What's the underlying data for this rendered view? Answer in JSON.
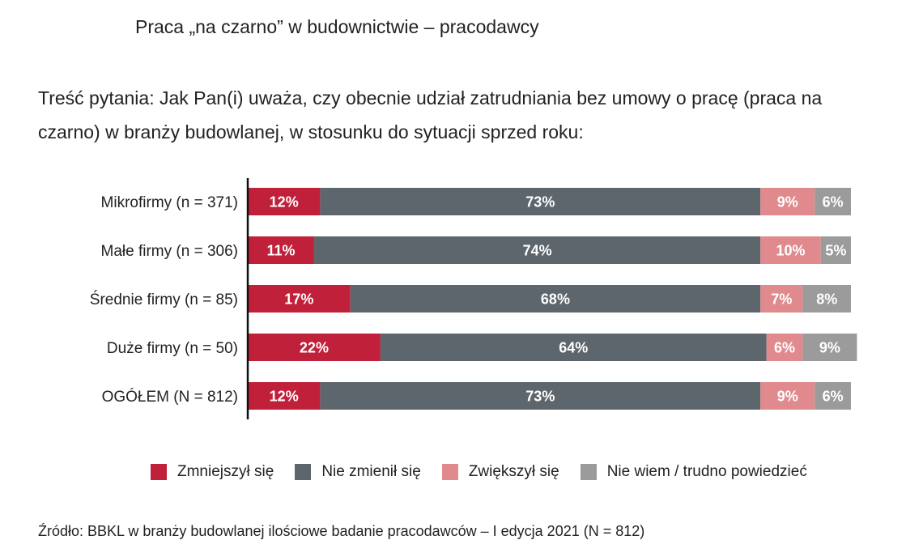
{
  "header": {
    "title": "Praca „na czarno” w budownictwie – pracodawcy",
    "question": "Treść pytania: Jak Pan(i) uważa, czy obecnie udział zatrudniania bez umowy o pracę (praca na czarno) w branży budowlanej, w stosunku do sytuacji sprzed roku:"
  },
  "colors": {
    "decreased": "#c0203a",
    "unchanged": "#5d666d",
    "increased": "#e08a8d",
    "dont_know": "#9b9b9b"
  },
  "chart_data": {
    "type": "bar",
    "orientation": "horizontal",
    "stacked": true,
    "percent": true,
    "categories": [
      "Mikrofirmy (n = 371)",
      "Małe firmy (n = 306)",
      "Średnie firmy (n = 85)",
      "Duże firmy (n = 50)",
      "OGÓŁEM (N = 812)"
    ],
    "series": [
      {
        "name": "Zmniejszył się",
        "key": "decreased",
        "values": [
          12,
          11,
          17,
          22,
          12
        ]
      },
      {
        "name": "Nie zmienił się",
        "key": "unchanged",
        "values": [
          73,
          74,
          68,
          64,
          73
        ]
      },
      {
        "name": "Zwiększył się",
        "key": "increased",
        "values": [
          9,
          10,
          7,
          6,
          9
        ]
      },
      {
        "name": "Nie wiem / trudno powiedzieć",
        "key": "dont_know",
        "values": [
          6,
          5,
          8,
          9,
          6
        ]
      }
    ],
    "xlim": [
      0,
      100
    ],
    "legend_position": "bottom"
  },
  "legend": {
    "items": [
      {
        "label": "Zmniejszył się",
        "key": "decreased"
      },
      {
        "label": "Nie zmienił się",
        "key": "unchanged"
      },
      {
        "label": "Zwiększył się",
        "key": "increased"
      },
      {
        "label": "Nie wiem / trudno powiedzieć",
        "key": "dont_know"
      }
    ]
  },
  "footer": {
    "source": "Źródło: BBKL w branży budowlanej ilościowe badanie pracodawców – I edycja 2021 (N = 812)"
  }
}
